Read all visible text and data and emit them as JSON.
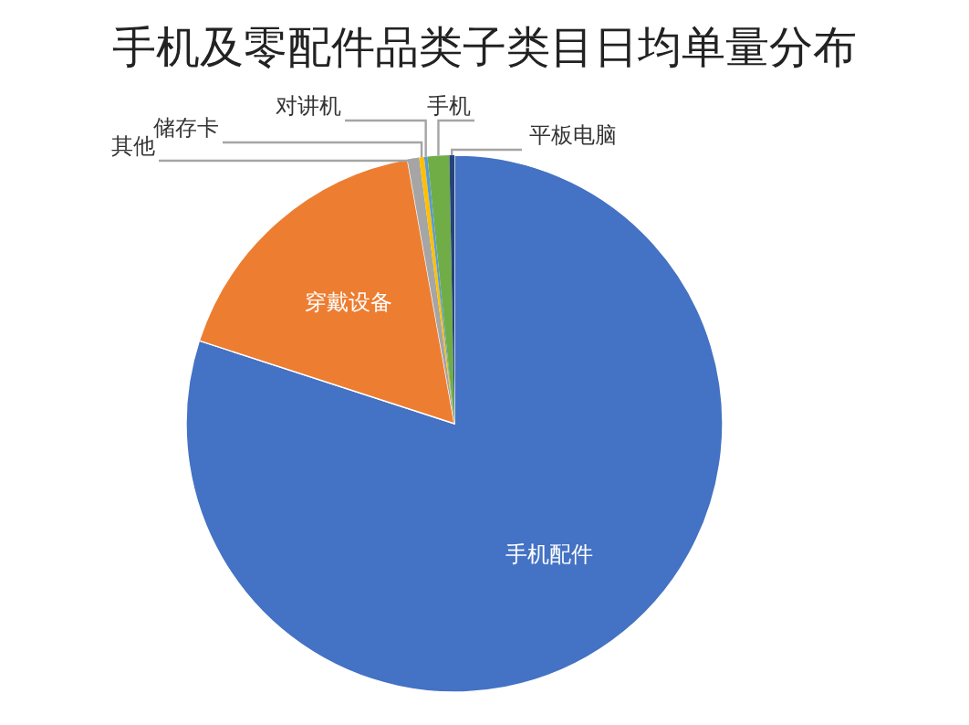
{
  "chart_data": {
    "type": "pie",
    "title": "手机及零配件品类子类目日均单量分布",
    "categories": [
      "手机配件",
      "穿戴设备",
      "其他",
      "储存卡",
      "对讲机",
      "手机",
      "平板电脑"
    ],
    "values": [
      80.0,
      17.2,
      0.7,
      0.3,
      0.2,
      1.3,
      0.3
    ],
    "colors": [
      "#4472c4",
      "#ed7d31",
      "#a5a5a5",
      "#ffc000",
      "#5b9bd5",
      "#70ad47",
      "#264478"
    ],
    "legend": false
  }
}
